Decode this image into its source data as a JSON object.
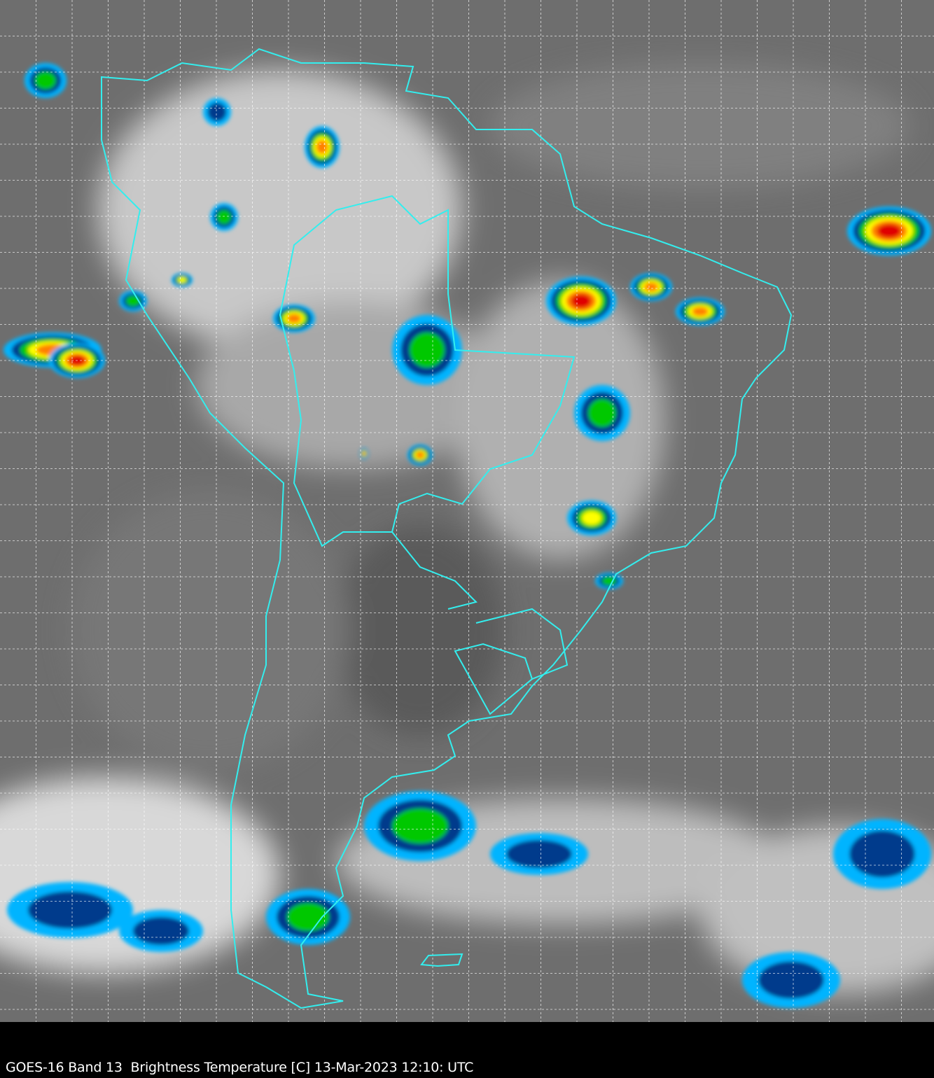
{
  "caption": "GOES-16 Band 13  Brightness Temperature [C] 13-Mar-2023 12:10: UTC",
  "map": {
    "region": "South America",
    "border_color": "#33eeee",
    "grid_color": "#ffffff",
    "grid_style": "dashed",
    "colorscale": [
      "#ffffff",
      "#00b4ff",
      "#003a8c",
      "#00c800",
      "#ffff00",
      "#ff8000",
      "#e00000",
      "#400000"
    ]
  }
}
